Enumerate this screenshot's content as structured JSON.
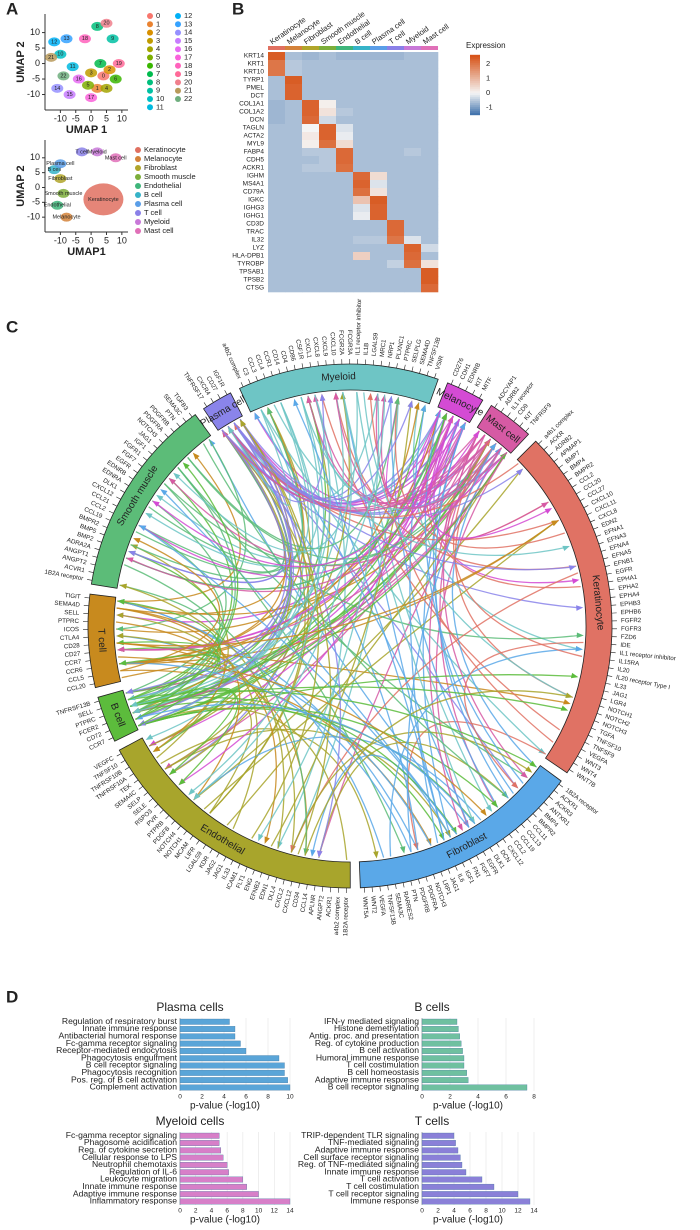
{
  "panels": {
    "a": "A",
    "b": "B",
    "c": "C",
    "d": "D"
  },
  "umap_clusters": {
    "type": "scatter",
    "xlabel": "UMAP 1",
    "ylabel": "UMAP 2",
    "xlim": [
      -15,
      12
    ],
    "ylim": [
      -15,
      16
    ],
    "xticks": [
      -10,
      -5,
      0,
      5,
      10
    ],
    "yticks": [
      -10,
      -5,
      0,
      5,
      10
    ],
    "names": [
      "0",
      "1",
      "2",
      "3",
      "4",
      "5",
      "6",
      "7",
      "8",
      "9",
      "10",
      "11",
      "12",
      "13",
      "14",
      "15",
      "16",
      "17",
      "18",
      "19",
      "20",
      "21",
      "22"
    ],
    "colors": [
      "#f8766d",
      "#ea8331",
      "#d89000",
      "#c09b00",
      "#a3a500",
      "#7cae00",
      "#39b600",
      "#00bb4e",
      "#00bf7d",
      "#00c1a3",
      "#00bfc4",
      "#00bae0",
      "#00b0f6",
      "#35a2ff",
      "#9590ff",
      "#c77cff",
      "#e76bf3",
      "#fa62db",
      "#ff62bc",
      "#ff6a98",
      "#f07f8c",
      "#b89a5a",
      "#6fae7e"
    ],
    "x": [
      4,
      2,
      6,
      0,
      5,
      -1,
      8,
      3,
      2,
      7,
      -10,
      -6,
      -12,
      -8,
      -11,
      -7,
      -4,
      0,
      -2,
      9,
      5,
      -13,
      -9
    ],
    "y": [
      -4,
      -8,
      -2,
      -3,
      -8,
      -7,
      -5,
      0,
      12,
      8,
      3,
      -1,
      7,
      8,
      -8,
      -10,
      -5,
      -11,
      8,
      0,
      13,
      2,
      -4
    ]
  },
  "umap_celltypes": {
    "type": "scatter",
    "xlabel": "UMAP1",
    "ylabel": "UMAP 2",
    "xlim": [
      -15,
      12
    ],
    "ylim": [
      -15,
      16
    ],
    "xticks": [
      -10,
      -5,
      0,
      5,
      10
    ],
    "yticks": [
      -10,
      -5,
      0,
      5,
      10
    ],
    "names": [
      "Keratinocyte",
      "Melanocyte",
      "Fibroblast",
      "Smooth muscle",
      "Endothelial",
      "B cell",
      "Plasma cell",
      "T cell",
      "Myeloid",
      "Mast cell"
    ],
    "colors": [
      "#e07060",
      "#d4823a",
      "#b0a52a",
      "#7cae3a",
      "#3eb57a",
      "#36b3c8",
      "#5a9ee8",
      "#8a80e8",
      "#c878d8",
      "#e070b8"
    ],
    "x": [
      4,
      -8,
      -10,
      -9,
      -11,
      -12,
      -10,
      -3,
      2,
      8
    ],
    "y": [
      -4,
      -10,
      3,
      -2,
      -6,
      6,
      8,
      12,
      12,
      10
    ]
  },
  "heatmap": {
    "legend_title": "Expression",
    "clim": [
      -1.5,
      2.6
    ],
    "ticks": [
      2,
      1,
      0,
      -1
    ],
    "cell_types": [
      "Keratinocyte",
      "Melanocyte",
      "Fibroblast",
      "Smooth muscle",
      "Endothelial",
      "B cell",
      "Plasma cell",
      "T cell",
      "Myeloid",
      "Mast cell"
    ],
    "type_colors": [
      "#e07060",
      "#d4823a",
      "#b0a52a",
      "#7cae3a",
      "#3eb57a",
      "#36b3c8",
      "#5a9ee8",
      "#8a80e8",
      "#c878d8",
      "#e070b8"
    ],
    "genes": [
      "KRT14",
      "KRT1",
      "KRT10",
      "TYRP1",
      "PMEL",
      "DCT",
      "COL1A1",
      "COL1A2",
      "DCN",
      "TAGLN",
      "ACTA2",
      "MYL9",
      "FABP4",
      "CDH5",
      "ACKR1",
      "IGHM",
      "MS4A1",
      "CD79A",
      "IGKC",
      "IGHG3",
      "IGHG1",
      "CD3D",
      "TRAC",
      "IL32",
      "LYZ",
      "HLA-DPB1",
      "TYROBP",
      "TPSAB1",
      "TPSB2",
      "CTSG"
    ],
    "matrix": [
      [
        2.4,
        -0.6,
        -0.7,
        -0.6,
        -0.7,
        -0.7,
        -0.7,
        -0.7,
        -0.6,
        -0.6
      ],
      [
        2.0,
        -0.5,
        -0.6,
        -0.6,
        -0.6,
        -0.6,
        -0.6,
        -0.6,
        -0.6,
        -0.6
      ],
      [
        2.0,
        -0.5,
        -0.6,
        -0.6,
        -0.6,
        -0.6,
        -0.6,
        -0.6,
        -0.6,
        -0.6
      ],
      [
        -0.6,
        2.4,
        -0.6,
        -0.6,
        -0.6,
        -0.6,
        -0.6,
        -0.6,
        -0.6,
        -0.6
      ],
      [
        -0.6,
        2.3,
        -0.6,
        -0.6,
        -0.6,
        -0.6,
        -0.6,
        -0.6,
        -0.6,
        -0.6
      ],
      [
        -0.6,
        2.3,
        -0.6,
        -0.6,
        -0.6,
        -0.6,
        -0.6,
        -0.6,
        -0.6,
        -0.6
      ],
      [
        -0.7,
        -0.6,
        2.3,
        0.1,
        -0.6,
        -0.6,
        -0.6,
        -0.6,
        -0.6,
        -0.6
      ],
      [
        -0.7,
        -0.6,
        2.3,
        0.3,
        -0.5,
        -0.6,
        -0.6,
        -0.6,
        -0.6,
        -0.6
      ],
      [
        -0.7,
        -0.6,
        2.2,
        -0.3,
        -0.6,
        -0.6,
        -0.6,
        -0.6,
        -0.6,
        -0.6
      ],
      [
        -0.6,
        -0.6,
        0.0,
        2.3,
        -0.2,
        -0.6,
        -0.6,
        -0.6,
        -0.6,
        -0.6
      ],
      [
        -0.6,
        -0.6,
        0.2,
        2.3,
        -0.1,
        -0.6,
        -0.6,
        -0.6,
        -0.6,
        -0.6
      ],
      [
        -0.6,
        -0.6,
        0.1,
        2.1,
        0.4,
        -0.6,
        -0.6,
        -0.6,
        -0.6,
        -0.6
      ],
      [
        -0.6,
        -0.6,
        -0.5,
        -0.5,
        2.2,
        -0.6,
        -0.6,
        -0.6,
        -0.5,
        -0.6
      ],
      [
        -0.6,
        -0.6,
        -0.6,
        -0.5,
        2.2,
        -0.6,
        -0.6,
        -0.6,
        -0.6,
        -0.6
      ],
      [
        -0.6,
        -0.6,
        -0.5,
        -0.5,
        2.1,
        -0.6,
        -0.6,
        -0.6,
        -0.6,
        -0.6
      ],
      [
        -0.6,
        -0.6,
        -0.6,
        -0.6,
        -0.6,
        2.2,
        0.4,
        -0.6,
        -0.6,
        -0.6
      ],
      [
        -0.6,
        -0.6,
        -0.6,
        -0.6,
        -0.6,
        2.3,
        -0.2,
        -0.6,
        -0.6,
        -0.6
      ],
      [
        -0.6,
        -0.6,
        -0.6,
        -0.6,
        -0.6,
        2.1,
        0.3,
        -0.6,
        -0.6,
        -0.6
      ],
      [
        -0.6,
        -0.6,
        -0.6,
        -0.6,
        -0.6,
        0.8,
        2.4,
        -0.6,
        -0.6,
        -0.6
      ],
      [
        -0.6,
        -0.6,
        -0.6,
        -0.6,
        -0.6,
        -0.2,
        2.3,
        -0.6,
        -0.6,
        -0.6
      ],
      [
        -0.6,
        -0.6,
        -0.6,
        -0.6,
        -0.6,
        -0.1,
        2.3,
        -0.6,
        -0.6,
        -0.6
      ],
      [
        -0.6,
        -0.6,
        -0.6,
        -0.6,
        -0.6,
        -0.6,
        -0.6,
        2.2,
        -0.6,
        -0.6
      ],
      [
        -0.6,
        -0.6,
        -0.6,
        -0.6,
        -0.6,
        -0.6,
        -0.6,
        2.2,
        -0.6,
        -0.6
      ],
      [
        -0.6,
        -0.6,
        -0.6,
        -0.6,
        -0.6,
        -0.5,
        -0.5,
        2.0,
        -0.2,
        -0.6
      ],
      [
        -0.6,
        -0.6,
        -0.6,
        -0.6,
        -0.6,
        -0.6,
        -0.6,
        -0.6,
        2.3,
        -0.3
      ],
      [
        -0.6,
        -0.6,
        -0.6,
        -0.6,
        -0.6,
        0.6,
        -0.6,
        -0.6,
        2.2,
        -0.6
      ],
      [
        -0.6,
        -0.6,
        -0.6,
        -0.6,
        -0.6,
        -0.6,
        -0.6,
        -0.4,
        2.1,
        0.3
      ],
      [
        -0.6,
        -0.6,
        -0.6,
        -0.6,
        -0.6,
        -0.6,
        -0.6,
        -0.6,
        -0.6,
        2.4
      ],
      [
        -0.6,
        -0.6,
        -0.6,
        -0.6,
        -0.6,
        -0.6,
        -0.6,
        -0.6,
        -0.6,
        2.4
      ],
      [
        -0.6,
        -0.6,
        -0.6,
        -0.6,
        -0.6,
        -0.6,
        -0.6,
        -0.6,
        -0.6,
        2.2
      ]
    ]
  },
  "chord": {
    "segments": [
      {
        "name": "Plasma cell",
        "color": "#8a84ea",
        "genes": [
          "TNFRSF17",
          "CXCR4",
          "CD27",
          "IGF1R"
        ]
      },
      {
        "name": "Myeloid",
        "color": "#6ec5c5",
        "genes": [
          "a4b2 complex",
          "C3",
          "CCL3",
          "CCL4",
          "CCR1",
          "CD14",
          "CD4",
          "CD86",
          "CSF1R",
          "CXCL1",
          "CXCL8",
          "CXCL9",
          "CXCL10",
          "FCGR2A",
          "FCGR3A",
          "IL1 receptor inhibitor",
          "IL1B",
          "LGALS9",
          "MRC1",
          "NRP1",
          "PLXNC1",
          "PTPRC",
          "SELPLG",
          "SEMA4D",
          "TNFSF13B",
          "VSIR"
        ]
      },
      {
        "name": "Melanocyte",
        "color": "#d44bd4",
        "genes": [
          "CD276",
          "CDH1",
          "EDNRB",
          "KIT",
          "MITF"
        ]
      },
      {
        "name": "Mast cell",
        "color": "#d65aa4",
        "genes": [
          "ADCYAP1",
          "ADRB2",
          "IL1 receptor",
          "CD9",
          "KIT",
          "TNFRSF9"
        ]
      },
      {
        "name": "Keratinocyte",
        "color": "#e07264",
        "genes": [
          "a4b1 complex",
          "ACKR",
          "ADRB2",
          "APMAP1",
          "BMP7",
          "BMP4",
          "BMPR2",
          "CCL2",
          "CCL20",
          "CCL27",
          "CXCL10",
          "CXCL11",
          "CXCL8",
          "EDN2",
          "EFNA1",
          "EFNA3",
          "EFNA4",
          "EFNA5",
          "EFNB1",
          "EGFR",
          "EPHA1",
          "EPHA2",
          "EPHA4",
          "EPHB3",
          "EPHB6",
          "FGFR2",
          "FGFR3",
          "FZD6",
          "IDE",
          "IL1 receptor inhibitor",
          "IL15RA",
          "IL20",
          "IL20 receptor Type I",
          "IL33",
          "JAG1",
          "LGR4",
          "NOTCH1",
          "NOTCH2",
          "NOTCH3",
          "TGFA",
          "TNFSF10",
          "TNFSF9",
          "VEGFA",
          "WNT3",
          "WNT4",
          "WNT7B"
        ]
      },
      {
        "name": "Fibroblast",
        "color": "#5aa8e8",
        "genes": [
          "1B2A receptor",
          "ACKR1",
          "ACKR3",
          "ANTXR1",
          "BMP4",
          "BMPR2",
          "CCL11",
          "CCL13",
          "CCL19",
          "CCL2",
          "CXCL12",
          "DCN",
          "DLK1",
          "EGFR",
          "FGF7",
          "FN1",
          "IGF1",
          "IL6",
          "JAG1",
          "LRP1",
          "NOTCH3",
          "PDGFRA",
          "PDGFRB",
          "PTN",
          "RARRES2",
          "SEMA3C",
          "TNFSF13B",
          "VEGFA",
          "WNT2",
          "WNT5A"
        ]
      },
      {
        "name": "Endothelial",
        "color": "#a8a52c",
        "genes": [
          "1B2A receptor",
          "a4b2 complex",
          "ACKR1",
          "ANGPT2",
          "APLNR",
          "CCL14",
          "CD34",
          "CXCL12",
          "CXCL2",
          "DLL4",
          "EDN1",
          "EFNB2",
          "ENG",
          "FLT1",
          "ICAM1",
          "IL33",
          "JAG1",
          "JAG2",
          "KDR",
          "LGALS9",
          "LIFR",
          "MCAM",
          "NOTCH1",
          "NOTCH4",
          "PDGFB",
          "PTPRB",
          "PVR",
          "RSPO3",
          "SELE",
          "SELP",
          "SEMA4C",
          "TEK",
          "TNFRSF10A",
          "TNFRSF10B",
          "TNFSF10",
          "VEGFC"
        ]
      },
      {
        "name": "B cell",
        "color": "#5cbc3c",
        "genes": [
          "CCR7",
          "CD72",
          "FCER2",
          "PTPRC",
          "SELL",
          "TNFRSF13B"
        ]
      },
      {
        "name": "T cell",
        "color": "#c88a1e",
        "genes": [
          "CCL20",
          "CCL5",
          "CCR6",
          "CCR7",
          "CD27",
          "CD28",
          "CTLA4",
          "ICOS",
          "PTPRC",
          "SELL",
          "SEMA4D",
          "TIGIT"
        ]
      },
      {
        "name": "Smooth muscle",
        "color": "#5cbc78",
        "genes": [
          "1B2A receptor",
          "ACVR1",
          "ANGPT2",
          "ANGPT1",
          "ADRA2A",
          "BMP2",
          "BMP5",
          "BMPR2",
          "CCL19",
          "CCL2",
          "CCL21",
          "CXCL12",
          "DLK1",
          "EDNRA",
          "EDNRB",
          "EGFR",
          "FGF7",
          "FGFR1",
          "IGF1",
          "JAG1",
          "NOTCH3",
          "PDGFRA",
          "PDGFRB",
          "PTN",
          "SEMA3C",
          "TGFB3"
        ]
      }
    ]
  },
  "enrichment": [
    {
      "type": "bar",
      "title": "Plasma cells",
      "xlabel": "p-value (-log10)",
      "color": "#5aa5d8",
      "xlim": [
        0,
        10
      ],
      "xticks": [
        0,
        2,
        4,
        6,
        8,
        10
      ],
      "categories": [
        "Regulation of respiratory burst",
        "Innate immune response",
        "Antibacterial humoral response",
        "Fc-gamma receptor signaling",
        "Receptor-mediated endocytosis",
        "Phagocytosis engulfment",
        "B cell receptor signaling",
        "Phagocytosis recognition",
        "Pos. reg. of B cell activation",
        "Complement activation"
      ],
      "values": [
        4.5,
        5,
        5,
        5.5,
        6,
        9,
        9.5,
        9.5,
        9.8,
        10
      ]
    },
    {
      "type": "bar",
      "title": "B cells",
      "xlabel": "p-value (-log10)",
      "color": "#6fc0a0",
      "xlim": [
        0,
        8
      ],
      "xticks": [
        0,
        2,
        4,
        6,
        8
      ],
      "categories": [
        "IFN-γ mediated signaling",
        "Histone demethylation",
        "Antig. proc. and presentation",
        "Reg. of cytokine production",
        "B cell activation",
        "Humoral immune response",
        "T cell costimulation",
        "B cell homeostasis",
        "Adaptive immune response",
        "B cell receptor signaling"
      ],
      "values": [
        2.5,
        2.6,
        2.7,
        2.8,
        2.9,
        3,
        3,
        3.2,
        3.3,
        7.5
      ]
    },
    {
      "type": "bar",
      "title": "Myeloid cells",
      "xlabel": "p-value (-log10)",
      "color": "#d77fc8",
      "xlim": [
        0,
        14
      ],
      "xticks": [
        0,
        2,
        4,
        6,
        8,
        10,
        12,
        14
      ],
      "categories": [
        "Fc-gamma receptor signaling",
        "Phagosome acidification",
        "Reg. of cytokine secretion",
        "Cellular response to LPS",
        "Neutrophil chemotaxis",
        "Regulation of IL-6",
        "Leukocyte migration",
        "Innate immune response",
        "Adaptive immune response",
        "Inflammatory response"
      ],
      "values": [
        5,
        5,
        5.2,
        5.5,
        6,
        6.2,
        8,
        8.5,
        10,
        14
      ]
    },
    {
      "type": "bar",
      "title": "T cells",
      "xlabel": "p-value (-log10)",
      "color": "#8a80d8",
      "xlim": [
        0,
        14
      ],
      "xticks": [
        0,
        2,
        4,
        6,
        8,
        10,
        12,
        14
      ],
      "categories": [
        "TRIP-dependent TLR signaling",
        "TNF-mediated signaling",
        "Adaptive immune response",
        "Cell surface receptor signaling",
        "Reg. of TNF-mediated signaling",
        "Innate immune response",
        "T cell activation",
        "T cell costimulation",
        "T cell receptor signaling",
        "Immune response"
      ],
      "values": [
        4,
        4.2,
        4.5,
        4.8,
        5,
        5.5,
        7.5,
        9,
        12,
        13.5
      ]
    }
  ]
}
